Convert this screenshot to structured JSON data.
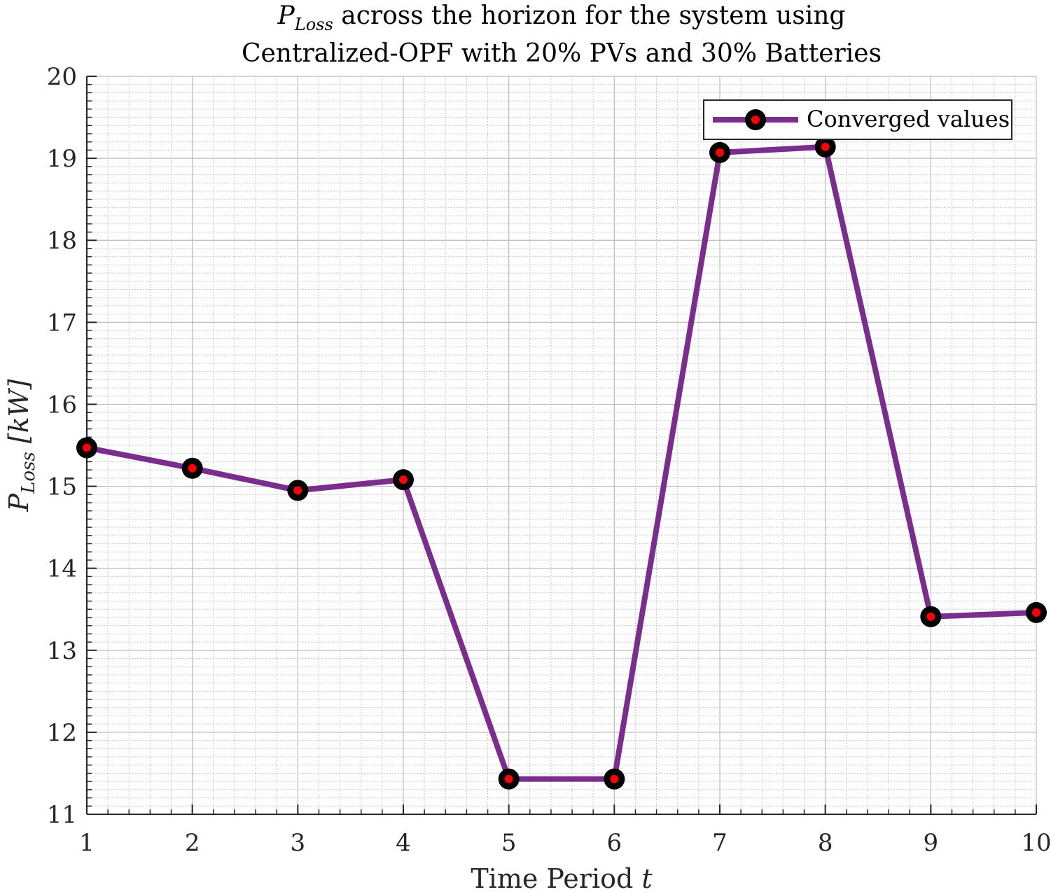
{
  "chart_data": {
    "type": "line",
    "title_line1_symbol": "P",
    "title_line1_subscript": "Loss",
    "title_line1_rest": "across the horizon for the system using",
    "title_line2": "Centralized-OPF with 20% PVs and 30% Batteries",
    "xlabel_text": "Time Period ",
    "xlabel_var": "t",
    "ylabel_symbol": "P",
    "ylabel_subscript": "Loss",
    "ylabel_unit": "[kW]",
    "xlim": [
      1,
      10
    ],
    "ylim": [
      11,
      20
    ],
    "xticks": [
      1,
      2,
      3,
      4,
      5,
      6,
      7,
      8,
      9,
      10
    ],
    "yticks": [
      11,
      12,
      13,
      14,
      15,
      16,
      17,
      18,
      19,
      20
    ],
    "grid": true,
    "minor_grid": true,
    "legend_position": "top-right",
    "series": [
      {
        "name": "Converged values",
        "line_color": "#7b2d8e",
        "marker_edge_color": "#000000",
        "marker_face_color": "#ff0000",
        "x": [
          1,
          2,
          3,
          4,
          5,
          6,
          7,
          8,
          9,
          10
        ],
        "y": [
          15.47,
          15.22,
          14.95,
          15.08,
          11.43,
          11.43,
          19.07,
          19.14,
          13.41,
          13.46
        ]
      }
    ]
  }
}
